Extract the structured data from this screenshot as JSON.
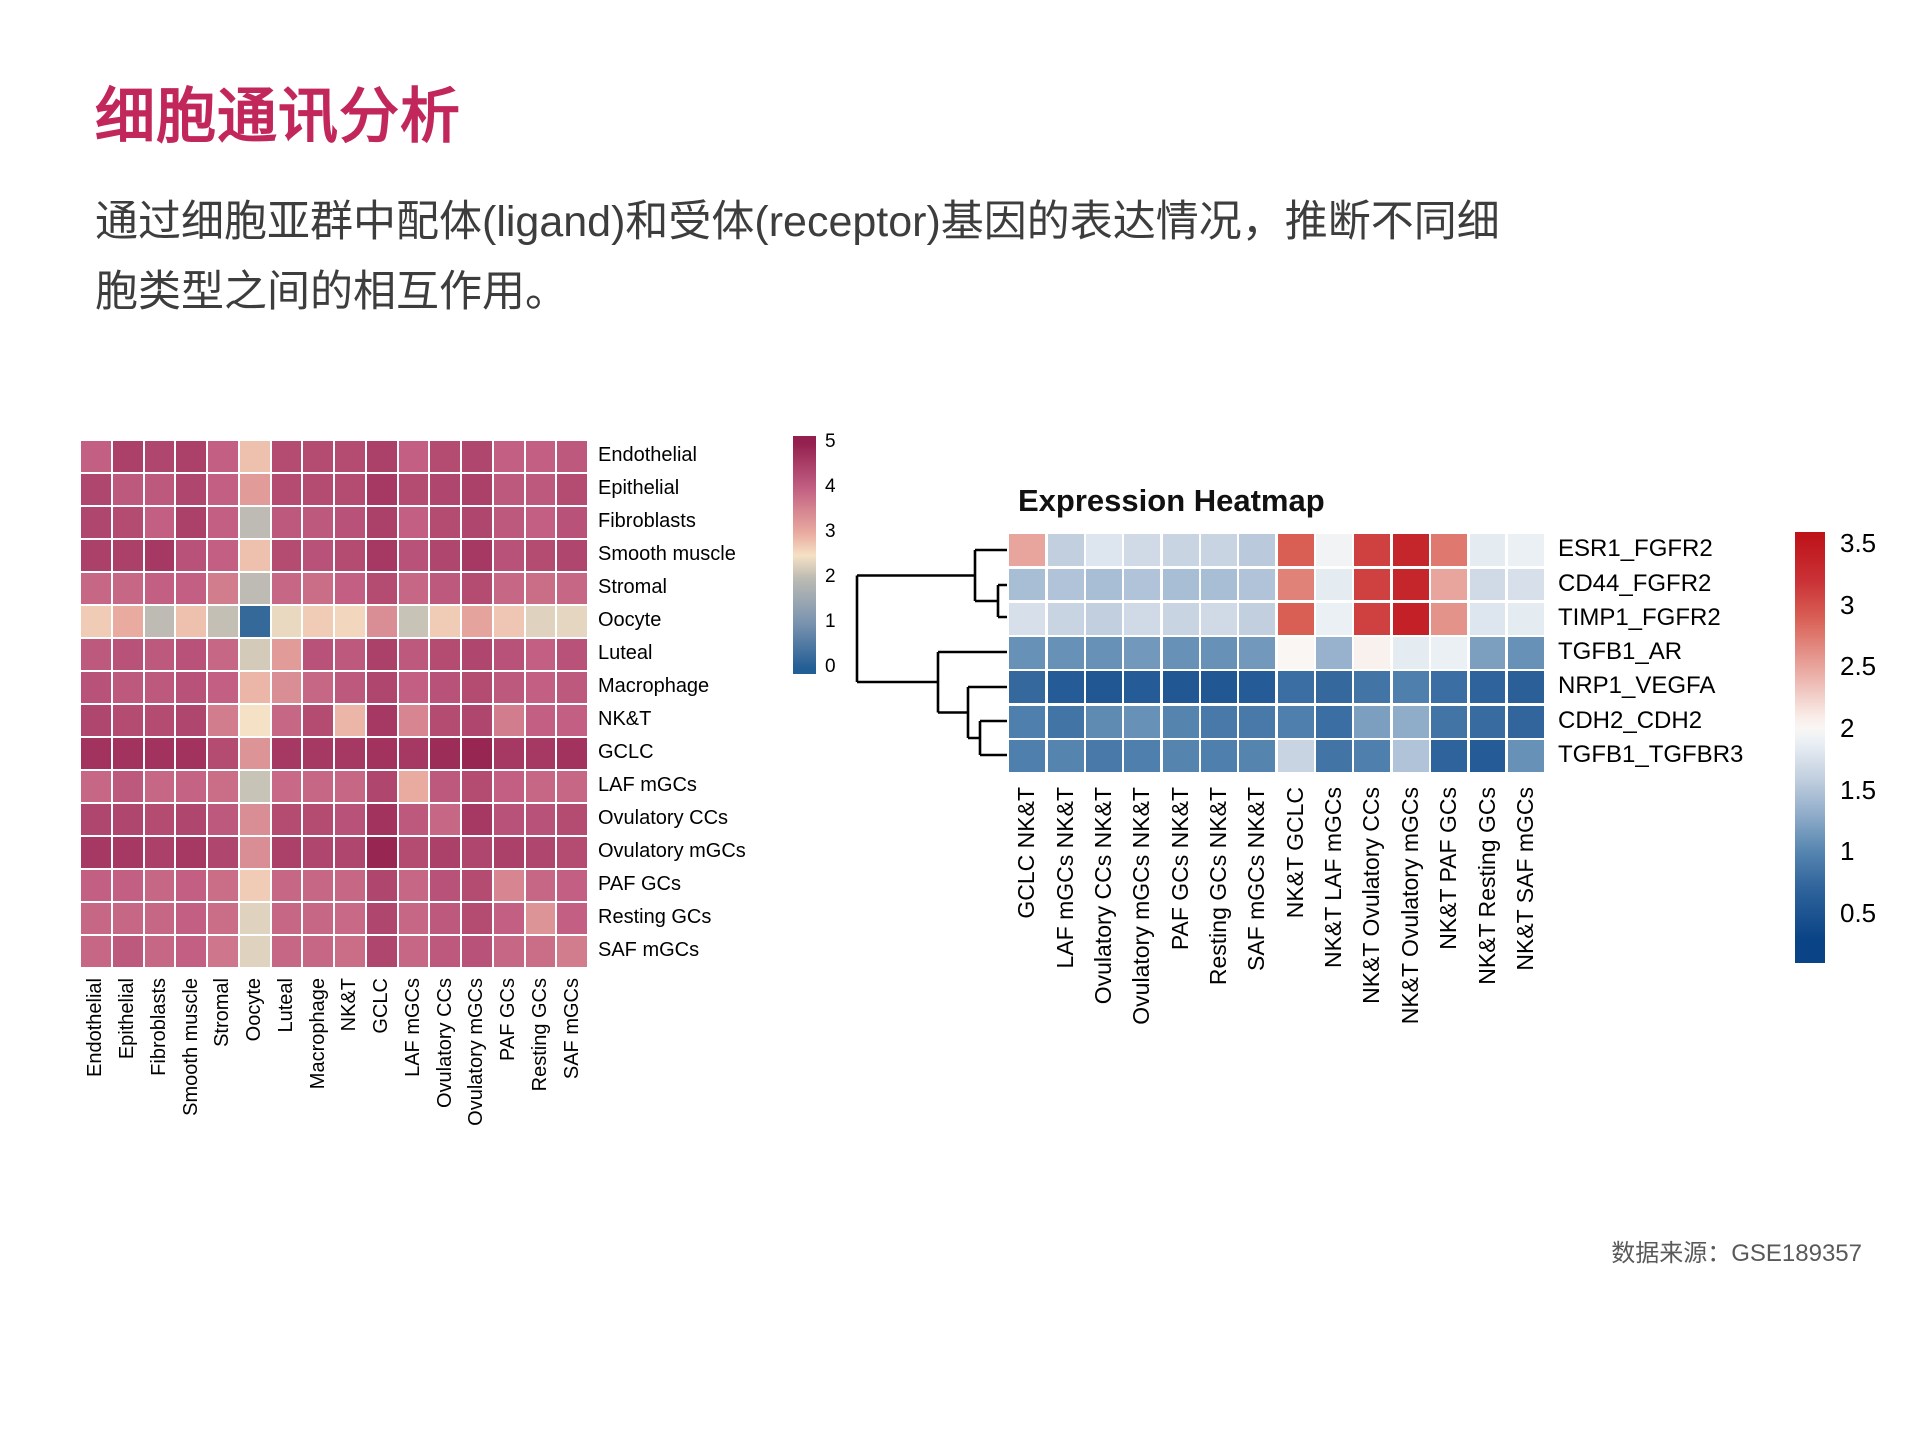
{
  "page": {
    "title": "细胞通讯分析",
    "title_color": "#C2275B",
    "description": "通过细胞亚群中配体(ligand)和受体(receptor)基因的表达情况，推断不同细胞类型之间的相互作用。",
    "source": "数据来源：GSE189357"
  },
  "chart_data": [
    {
      "id": "interaction_heatmap",
      "type": "heatmap",
      "title": "",
      "legend_position": "right",
      "grid": "white 2px gaps",
      "rows": [
        "Endothelial",
        "Epithelial",
        "Fibroblasts",
        "Smooth muscle",
        "Stromal",
        "Oocyte",
        "Luteal",
        "Macrophage",
        "NK&T",
        "GCLC",
        "LAF mGCs",
        "Ovulatory CCs",
        "Ovulatory mGCs",
        "PAF GCs",
        "Resting GCs",
        "SAF mGCs"
      ],
      "cols": [
        "Endothelial",
        "Epithelial",
        "Fibroblasts",
        "Smooth muscle",
        "Stromal",
        "Oocyte",
        "Luteal",
        "Macrophage",
        "NK&T",
        "GCLC",
        "LAF mGCs",
        "Ovulatory CCs",
        "Ovulatory mGCs",
        "PAF GCs",
        "Resting GCs",
        "SAF mGCs"
      ],
      "values": [
        [
          4.0,
          4.5,
          4.4,
          4.5,
          4.0,
          2.8,
          4.3,
          4.3,
          4.3,
          4.5,
          4.0,
          4.3,
          4.4,
          4.0,
          4.0,
          4.1
        ],
        [
          4.4,
          4.1,
          4.1,
          4.4,
          4.0,
          3.2,
          4.3,
          4.3,
          4.3,
          4.6,
          4.3,
          4.4,
          4.5,
          4.1,
          4.1,
          4.3
        ],
        [
          4.4,
          4.3,
          4.0,
          4.5,
          4.0,
          2.0,
          4.1,
          4.1,
          4.2,
          4.5,
          4.0,
          4.3,
          4.4,
          4.1,
          4.0,
          4.2
        ],
        [
          4.5,
          4.5,
          4.6,
          4.2,
          4.0,
          2.8,
          4.3,
          4.2,
          4.3,
          4.6,
          4.2,
          4.4,
          4.6,
          4.2,
          4.3,
          4.4
        ],
        [
          3.9,
          3.9,
          4.0,
          4.0,
          3.6,
          2.0,
          3.9,
          3.8,
          4.0,
          4.3,
          3.9,
          4.1,
          4.3,
          3.9,
          3.8,
          3.9
        ],
        [
          2.7,
          3.0,
          2.0,
          2.8,
          2.05,
          0.2,
          2.4,
          2.7,
          2.6,
          3.4,
          2.1,
          2.7,
          3.1,
          2.75,
          2.3,
          2.35
        ],
        [
          4.1,
          4.2,
          4.1,
          4.2,
          3.9,
          2.2,
          3.2,
          4.2,
          4.1,
          4.5,
          4.1,
          4.3,
          4.4,
          4.2,
          4.0,
          4.2
        ],
        [
          4.2,
          4.1,
          4.1,
          4.2,
          4.0,
          2.9,
          3.4,
          3.9,
          4.1,
          4.4,
          4.0,
          4.2,
          4.3,
          4.1,
          4.0,
          4.1
        ],
        [
          4.4,
          4.3,
          4.3,
          4.4,
          3.6,
          2.5,
          3.9,
          4.3,
          2.9,
          4.6,
          3.5,
          4.3,
          4.4,
          3.6,
          4.0,
          4.0
        ],
        [
          4.7,
          4.7,
          4.7,
          4.7,
          4.3,
          3.3,
          4.6,
          4.6,
          4.6,
          4.7,
          4.6,
          4.8,
          4.9,
          4.6,
          4.6,
          4.7
        ],
        [
          3.9,
          4.1,
          3.9,
          3.95,
          3.8,
          2.1,
          3.85,
          3.9,
          3.9,
          4.4,
          3.0,
          4.1,
          4.3,
          4.0,
          3.9,
          3.9
        ],
        [
          4.4,
          4.4,
          4.3,
          4.4,
          4.1,
          3.4,
          4.3,
          4.3,
          4.2,
          4.7,
          4.1,
          3.9,
          4.6,
          4.2,
          4.2,
          4.3
        ],
        [
          4.6,
          4.6,
          4.5,
          4.6,
          4.4,
          3.4,
          4.5,
          4.4,
          4.4,
          4.9,
          4.3,
          4.5,
          4.4,
          4.5,
          4.4,
          4.3
        ],
        [
          4.0,
          4.0,
          3.9,
          4.0,
          3.8,
          2.7,
          3.9,
          3.9,
          3.9,
          4.4,
          3.9,
          4.2,
          4.3,
          3.5,
          3.9,
          4.0
        ],
        [
          3.9,
          3.9,
          3.9,
          4.0,
          3.8,
          2.3,
          3.9,
          3.9,
          3.85,
          4.4,
          3.9,
          4.1,
          4.3,
          4.0,
          3.3,
          4.0
        ],
        [
          3.9,
          4.1,
          3.9,
          4.0,
          3.7,
          2.3,
          3.9,
          3.9,
          3.8,
          4.4,
          3.9,
          4.1,
          4.2,
          3.9,
          3.8,
          3.6
        ]
      ],
      "colorbar": {
        "ticks": [
          5,
          4,
          3,
          2,
          1,
          0
        ],
        "range": [
          0,
          5
        ],
        "stops": [
          [
            5,
            "#93204E"
          ],
          [
            4,
            "#C25F82"
          ],
          [
            3,
            "#E9ABA0"
          ],
          [
            2.5,
            "#F5E1C5"
          ],
          [
            2,
            "#BDBBB3"
          ],
          [
            1,
            "#7A93AF"
          ],
          [
            0,
            "#235E95"
          ]
        ]
      }
    },
    {
      "id": "expression_heatmap",
      "type": "heatmap",
      "title": "Expression Heatmap",
      "legend_position": "right",
      "dendrogram": "rows, left side: ((ESR1_FGFR2,(CD44_FGFR2,TIMP1_FGFR2)),(TGFB1_AR,(NRP1_VEGFA,(CDH2_CDH2,TGFB1_TGFBR3))))",
      "rows": [
        "ESR1_FGFR2",
        "CD44_FGFR2",
        "TIMP1_FGFR2",
        "TGFB1_AR",
        "NRP1_VEGFA",
        "CDH2_CDH2",
        "TGFB1_TGFBR3"
      ],
      "cols": [
        "GCLC NK&T",
        "LAF mGCs NK&T",
        "Ovulatory CCs NK&T",
        "Ovulatory mGCs NK&T",
        "PAF GCs NK&T",
        "Resting GCs NK&T",
        "SAF mGCs NK&T",
        "NK&T GCLC",
        "NK&T LAF mGCs",
        "NK&T Ovulatory CCs",
        "NK&T Ovulatory mGCs",
        "NK&T PAF GCs",
        "NK&T Resting GCs",
        "NK&T SAF mGCs"
      ],
      "values": [
        [
          2.5,
          1.6,
          1.8,
          1.7,
          1.65,
          1.65,
          1.55,
          2.9,
          1.95,
          3.1,
          3.35,
          2.75,
          1.85,
          1.9
        ],
        [
          1.45,
          1.5,
          1.45,
          1.5,
          1.45,
          1.45,
          1.5,
          2.7,
          1.85,
          3.1,
          3.35,
          2.5,
          1.7,
          1.75
        ],
        [
          1.75,
          1.65,
          1.6,
          1.7,
          1.65,
          1.7,
          1.6,
          2.9,
          1.9,
          3.1,
          3.4,
          2.6,
          1.8,
          1.85
        ],
        [
          1.1,
          1.1,
          1.1,
          1.15,
          1.1,
          1.1,
          1.15,
          2.0,
          1.35,
          2.05,
          1.85,
          1.9,
          1.2,
          1.1
        ],
        [
          0.75,
          0.6,
          0.55,
          0.6,
          0.55,
          0.55,
          0.6,
          0.8,
          0.75,
          0.85,
          0.95,
          0.8,
          0.7,
          0.65
        ],
        [
          0.95,
          0.85,
          1.05,
          1.1,
          1.0,
          0.9,
          0.9,
          0.95,
          0.8,
          1.2,
          1.3,
          0.85,
          0.78,
          0.72
        ],
        [
          0.95,
          1.0,
          0.9,
          0.95,
          1.0,
          0.95,
          1.0,
          1.65,
          0.85,
          0.95,
          1.5,
          0.7,
          0.6,
          1.1
        ]
      ],
      "colorbar": {
        "ticks": [
          3.5,
          3,
          2.5,
          2,
          1.5,
          1,
          0.5
        ],
        "range": [
          0.1,
          3.6
        ],
        "stops": [
          [
            3.6,
            "#BD1218"
          ],
          [
            3.5,
            "#C0191F"
          ],
          [
            3.2,
            "#CA3237"
          ],
          [
            2.9,
            "#D95F55"
          ],
          [
            2.5,
            "#E8A59D"
          ],
          [
            2.1,
            "#F9ECE8"
          ],
          [
            2.0,
            "#F9F6F4"
          ],
          [
            1.9,
            "#EBF0F5"
          ],
          [
            1.6,
            "#C2CFDF"
          ],
          [
            1.3,
            "#8FACC9"
          ],
          [
            1.0,
            "#5584AF"
          ],
          [
            0.7,
            "#2E639B"
          ],
          [
            0.3,
            "#0B4486"
          ]
        ]
      }
    }
  ]
}
